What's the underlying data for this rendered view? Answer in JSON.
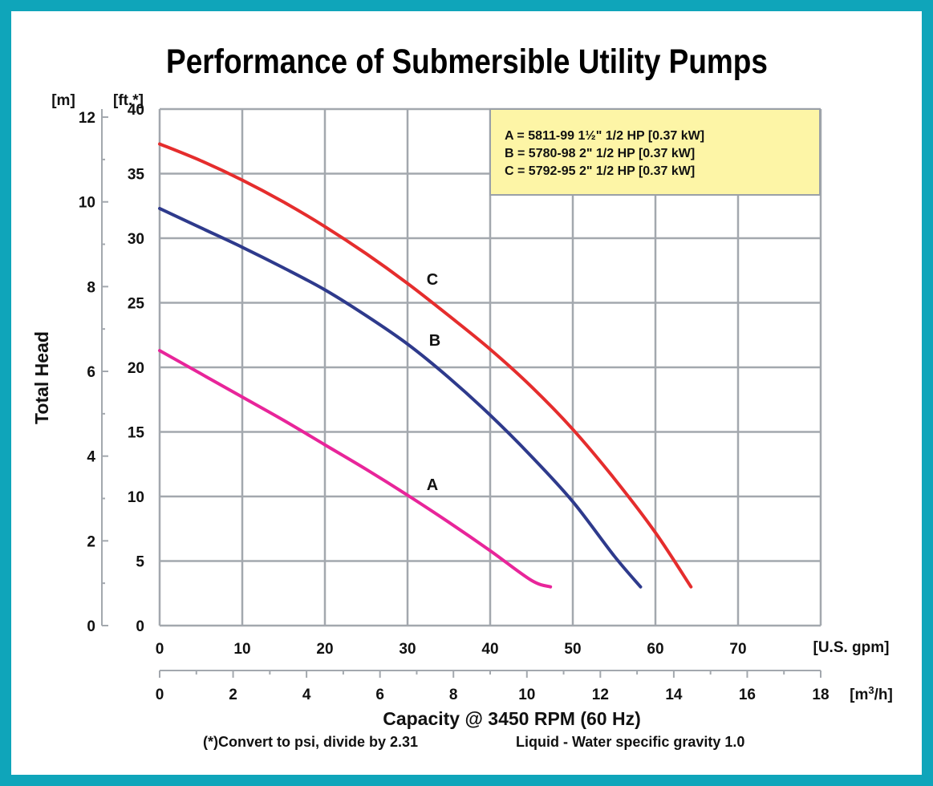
{
  "chart_data": {
    "type": "line",
    "title": "Performance of Submersible Utility Pumps",
    "ylabel": "Total Head",
    "y_unit_left": "[m]",
    "y_unit_right": "[ft.*]",
    "xlabel": "Capacity @ 3450 RPM (60 Hz)",
    "x_unit_primary": "[U.S. gpm]",
    "x_unit_secondary_pre": "[m",
    "x_unit_secondary_sup": "3",
    "x_unit_secondary_post": "/h]",
    "footnote_left": "(*)Convert to psi, divide by 2.31",
    "footnote_right": "Liquid - Water specific gravity 1.0",
    "xlim": [
      0,
      80
    ],
    "ylim": [
      0,
      40
    ],
    "grid": true,
    "legend_position": "top-right",
    "x_ticks": [
      "0",
      "10",
      "20",
      "30",
      "40",
      "50",
      "60",
      "70"
    ],
    "y_ticks_ft": [
      "0",
      "5",
      "10",
      "15",
      "20",
      "25",
      "30",
      "35",
      "40"
    ],
    "y_ticks_m": [
      "0",
      "2",
      "4",
      "6",
      "8",
      "10",
      "12"
    ],
    "x2_ticks": [
      "0",
      "2",
      "4",
      "6",
      "8",
      "10",
      "12",
      "14",
      "16",
      "18"
    ],
    "legend": [
      "A = 5811-99 1½\" 1/2 HP [0.37 kW]",
      "B = 5780-98 2\" 1/2 HP [0.37 kW]",
      "C = 5792-95 2\" 1/2 HP [0.37 kW]"
    ],
    "series": [
      {
        "name": "A",
        "color": "#e8259a",
        "x": [
          0,
          5,
          10,
          15,
          20,
          25,
          30,
          35,
          40,
          45,
          47.3
        ],
        "y": [
          21.3,
          19.5,
          17.7,
          15.9,
          14.0,
          12.1,
          10.1,
          8.0,
          5.8,
          3.5,
          3.0
        ]
      },
      {
        "name": "B",
        "color": "#2e3a8c",
        "x": [
          0,
          5,
          10,
          15,
          20,
          25,
          30,
          35,
          40,
          45,
          50,
          55,
          58.2
        ],
        "y": [
          32.3,
          30.8,
          29.3,
          27.7,
          26.0,
          24.0,
          21.8,
          19.2,
          16.3,
          13.1,
          9.6,
          5.4,
          3.0
        ]
      },
      {
        "name": "C",
        "color": "#e52d2d",
        "x": [
          0,
          5,
          10,
          15,
          20,
          25,
          30,
          35,
          40,
          45,
          50,
          55,
          60,
          64.3
        ],
        "y": [
          37.3,
          36.0,
          34.5,
          32.8,
          30.9,
          28.8,
          26.5,
          24.0,
          21.4,
          18.5,
          15.2,
          11.4,
          7.2,
          3.0
        ]
      }
    ]
  }
}
